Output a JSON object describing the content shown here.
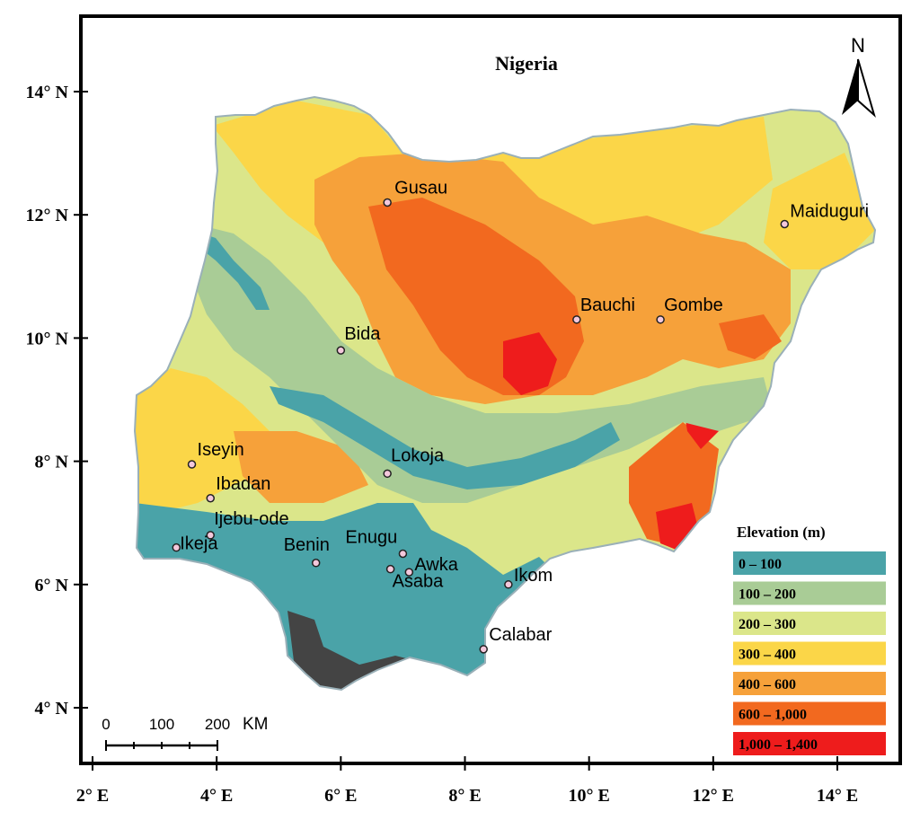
{
  "map": {
    "title": "Nigeria",
    "north_label": "N",
    "lat_labels": [
      "14° N",
      "12° N",
      "10° N",
      "8° N",
      "6° N",
      "4° N"
    ],
    "lon_labels": [
      "2° E",
      "4° E",
      "6° E",
      "8° E",
      "10° E",
      "12° E",
      "14° E"
    ],
    "scale_bar": {
      "ticks": [
        "0",
        "100",
        "200"
      ],
      "unit": "KM"
    },
    "cities": [
      {
        "name": "Gusau",
        "lon": 6.75,
        "lat": 12.2
      },
      {
        "name": "Maiduguri",
        "lon": 13.15,
        "lat": 11.85
      },
      {
        "name": "Bauchi",
        "lon": 9.8,
        "lat": 10.3
      },
      {
        "name": "Gombe",
        "lon": 11.15,
        "lat": 10.3
      },
      {
        "name": "Bida",
        "lon": 6.0,
        "lat": 9.8
      },
      {
        "name": "Iseyin",
        "lon": 3.6,
        "lat": 7.95
      },
      {
        "name": "Lokoja",
        "lon": 6.75,
        "lat": 7.8
      },
      {
        "name": "Ibadan",
        "lon": 3.9,
        "lat": 7.4
      },
      {
        "name": "Ijebu-ode",
        "lon": 3.9,
        "lat": 6.8
      },
      {
        "name": "Ikeja",
        "lon": 3.35,
        "lat": 6.6
      },
      {
        "name": "Enugu",
        "lon": 7.0,
        "lat": 6.5
      },
      {
        "name": "Benin",
        "lon": 5.6,
        "lat": 6.35
      },
      {
        "name": "Awka",
        "lon": 7.1,
        "lat": 6.2
      },
      {
        "name": "Asaba",
        "lon": 6.8,
        "lat": 6.25
      },
      {
        "name": "Ikom",
        "lon": 8.7,
        "lat": 6.0
      },
      {
        "name": "Calabar",
        "lon": 8.3,
        "lat": 4.95
      }
    ]
  },
  "legend": {
    "title": "Elevation (m)",
    "classes": [
      {
        "label": "0 – 100",
        "color": "#4aa3a8"
      },
      {
        "label": "100 – 200",
        "color": "#a9cc96"
      },
      {
        "label": "200 – 300",
        "color": "#dbe68a"
      },
      {
        "label": "300 – 400",
        "color": "#fbd648"
      },
      {
        "label": "400 – 600",
        "color": "#f6a13a"
      },
      {
        "label": "600 – 1,000",
        "color": "#f2691f"
      },
      {
        "label": "1,000 – 1,400",
        "color": "#ee1c1c"
      }
    ]
  }
}
